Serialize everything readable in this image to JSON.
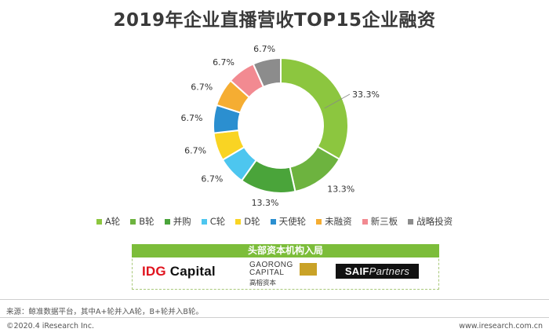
{
  "title": "2019年企业直播营收TOP15企业融资",
  "chart_data": {
    "type": "pie",
    "variant": "donut",
    "categories": [
      "A轮",
      "B轮",
      "并购",
      "C轮",
      "D轮",
      "天使轮",
      "未融资",
      "新三板",
      "战略投资"
    ],
    "values": [
      33.3,
      13.3,
      13.3,
      6.7,
      6.7,
      6.7,
      6.7,
      6.7,
      6.7
    ],
    "labels": [
      "33.3%",
      "13.3%",
      "13.3%",
      "6.7%",
      "6.7%",
      "6.7%",
      "6.7%",
      "6.7%",
      "6.7%"
    ],
    "colors": [
      "#8cc63f",
      "#6db33f",
      "#4aa43a",
      "#4dc6ef",
      "#f9d423",
      "#2b8fd0",
      "#f5ad32",
      "#f28a91",
      "#8c8c8c"
    ],
    "legend_position": "bottom",
    "title": "2019年企业直播营收TOP15企业融资"
  },
  "institutions": {
    "header": "头部资本机构入局",
    "logos": {
      "idg_prefix": "IDG",
      "idg_suffix": " Capital",
      "gaorong_line1": "GAORONG",
      "gaorong_line2": "CAPITAL",
      "gaorong_cn": "高榕资本",
      "saif_prefix": "SAIF",
      "saif_suffix": "Partners"
    }
  },
  "source": "来源：鲸准数据平台，其中A+轮并入A轮，B+轮并入B轮。",
  "footer": {
    "copyright": "©2020.4 iResearch Inc.",
    "website": "www.iresearch.com.cn"
  }
}
